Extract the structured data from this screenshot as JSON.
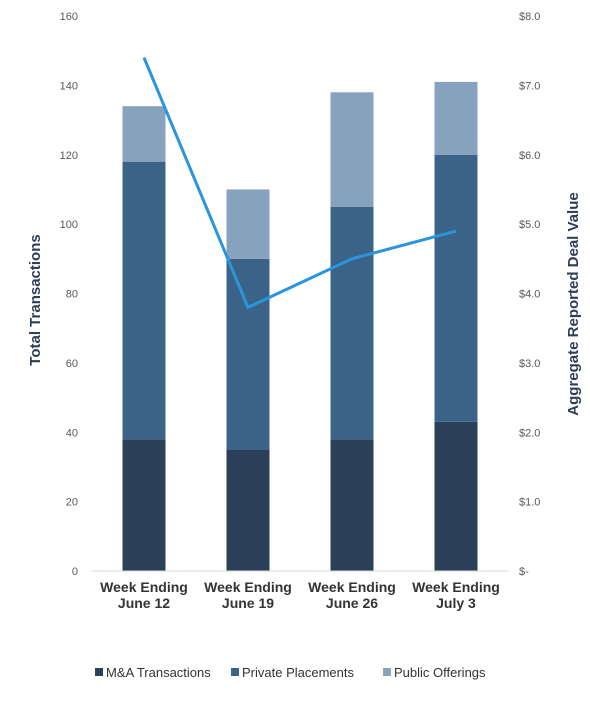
{
  "chart_data": {
    "type": "bar",
    "stacked": true,
    "categories": [
      [
        "Week Ending",
        "June 12"
      ],
      [
        "Week Ending",
        "June 19"
      ],
      [
        "Week Ending",
        "June 26"
      ],
      [
        "Week Ending",
        "July 3"
      ]
    ],
    "series": [
      {
        "name": "M&A Transactions",
        "values": [
          38,
          35,
          38,
          43
        ],
        "color": "#2b3f58"
      },
      {
        "name": "Private Placements",
        "values": [
          80,
          55,
          67,
          77
        ],
        "color": "#3a6387"
      },
      {
        "name": "Public Offerings",
        "values": [
          16,
          20,
          33,
          21
        ],
        "color": "#87a2bc"
      }
    ],
    "line_series": {
      "values": [
        7.4,
        3.8,
        4.5,
        4.9
      ],
      "color": "#2a95dc",
      "axis": "right"
    },
    "ylabel": "Total Transactions",
    "ylim": [
      0,
      160
    ],
    "yticks": [
      "0",
      "20",
      "40",
      "60",
      "80",
      "100",
      "120",
      "140",
      "160"
    ],
    "y2label": "Aggregate Reported Deal Value",
    "y2lim": [
      0,
      8
    ],
    "y2ticks": [
      "$-",
      "$1.0",
      "$2.0",
      "$3.0",
      "$4.0",
      "$5.0",
      "$6.0",
      "$7.0",
      "$8.0"
    ],
    "legend_position": "bottom",
    "grid": false
  }
}
